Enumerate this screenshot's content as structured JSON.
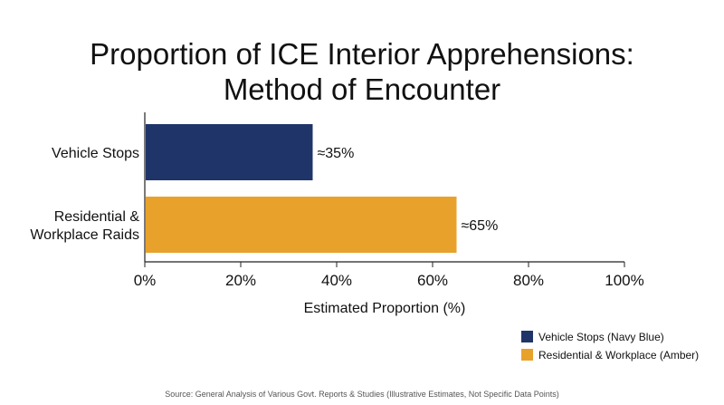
{
  "chart_data": {
    "type": "bar",
    "orientation": "horizontal",
    "title_lines": [
      "Proportion of ICE Interior Apprehensions:",
      "Method of Encounter"
    ],
    "categories": [
      "Vehicle Stops",
      "Residential & Workplace Raids"
    ],
    "category_label_lines": [
      [
        "Vehicle Stops"
      ],
      [
        "Residential &",
        "Workplace Raids"
      ]
    ],
    "values": [
      35,
      65
    ],
    "data_labels": [
      "≈35%",
      "≈65%"
    ],
    "bar_colors": [
      "#1f3569",
      "#e8a22c"
    ],
    "xlabel": "Estimated Proportion (%)",
    "ylabel": "",
    "xlim": [
      0,
      100
    ],
    "x_ticks": [
      0,
      20,
      40,
      60,
      80,
      100
    ],
    "x_tick_labels": [
      "0%",
      "20%",
      "40%",
      "60%",
      "80%",
      "100%"
    ],
    "grid": false,
    "legend_position": "bottom-right",
    "legend": [
      {
        "label": "Vehicle Stops (Navy Blue)",
        "color": "#1f3569"
      },
      {
        "label": "Residential & Workplace (Amber)",
        "color": "#e8a22c"
      }
    ],
    "source_note": "Source: General Analysis of Various Govt. Reports & Studies (Illustrative Estimates, Not Specific Data Points)"
  }
}
